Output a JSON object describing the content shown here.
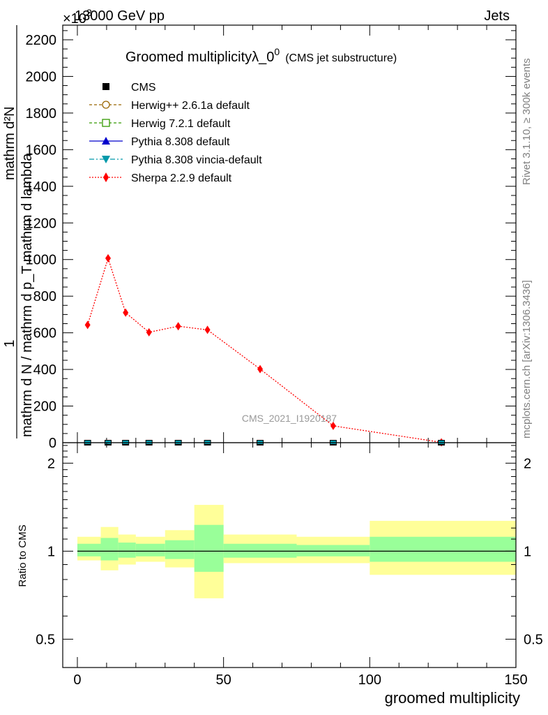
{
  "header": {
    "left": "13000 GeV pp",
    "right": "Jets",
    "multiplier": "×10",
    "multiplier_exp": "3"
  },
  "side_labels": {
    "rivet": "Rivet 3.1.10, ≥ 300k events",
    "mcplots": "mcplots.cern.ch [arXiv:1306.3436]"
  },
  "watermark": "CMS_2021_I1920187",
  "colors": {
    "sherpa": "#ff0000",
    "herwig_pp": "#996600",
    "herwig7": "#339900",
    "pythia": "#0000cc",
    "vincia": "#0099aa",
    "band_inner": "#99ff99",
    "band_outer": "#ffff99"
  },
  "chart_data": [
    {
      "type": "line",
      "title": "Groomed multiplicityλ_0",
      "title_sup": "0",
      "subtitle": "(CMS jet substructure)",
      "ylabel_num": "1",
      "ylabel_den": "mathrm d N / mathrm d p_T mathrm d lambda",
      "ylabel_top": "mathrm d²N",
      "xlim": [
        -5,
        150
      ],
      "ylim": [
        0,
        2280
      ],
      "y_scale_note": "values ×10^3",
      "yticks": [
        0,
        200,
        400,
        600,
        800,
        1000,
        1200,
        1400,
        1600,
        1800,
        2000,
        2200
      ],
      "ytick_labels": [
        "0",
        "200",
        "400",
        "600",
        "800",
        "1000",
        "1200",
        "1400",
        "1600",
        "1800",
        "2000",
        "2200"
      ],
      "legend": [
        {
          "name": "CMS",
          "marker": "square-filled",
          "color": "#000000"
        },
        {
          "name": "Herwig++ 2.6.1a default",
          "marker": "circle-open",
          "color": "#996600"
        },
        {
          "name": "Herwig 7.2.1 default",
          "marker": "square-open",
          "color": "#339900"
        },
        {
          "name": "Pythia 8.308 default",
          "marker": "triangle-up",
          "color": "#0000cc"
        },
        {
          "name": "Pythia 8.308 vincia-default",
          "marker": "triangle-down",
          "color": "#0099aa"
        },
        {
          "name": "Sherpa 2.2.9 default",
          "marker": "diamond",
          "color": "#ff0000"
        }
      ],
      "series": [
        {
          "name": "Sherpa 2.2.9 default",
          "x": [
            3.5,
            10.5,
            16.5,
            24.5,
            34.5,
            44.5,
            62.5,
            87.5,
            124.5
          ],
          "values": [
            643,
            1007,
            710,
            603,
            636,
            616,
            402,
            92,
            2
          ]
        },
        {
          "name": "CMS",
          "x": [
            3.5,
            10.5,
            16.5,
            24.5,
            34.5,
            44.5,
            62.5,
            87.5,
            124.5
          ],
          "values": [
            0,
            0,
            0,
            0,
            0,
            0,
            0,
            0,
            0
          ]
        }
      ]
    },
    {
      "type": "area",
      "ylabel": "Ratio to CMS",
      "xlabel": "groomed multiplicity",
      "xlim": [
        -5,
        150
      ],
      "ylim": [
        0.4,
        2.35
      ],
      "y_scale": "log",
      "xticks": [
        0,
        50,
        100,
        150
      ],
      "xtick_labels": [
        "0",
        "50",
        "100",
        "150"
      ],
      "yticks": [
        0.5,
        1,
        2
      ],
      "ytick_labels": [
        "0.5",
        "1",
        "2"
      ],
      "bins": [
        {
          "lo": 0,
          "hi": 8,
          "inner": [
            0.96,
            1.06
          ],
          "outer": [
            0.93,
            1.12
          ]
        },
        {
          "lo": 8,
          "hi": 14,
          "inner": [
            0.93,
            1.11
          ],
          "outer": [
            0.86,
            1.21
          ]
        },
        {
          "lo": 14,
          "hi": 20,
          "inner": [
            0.95,
            1.07
          ],
          "outer": [
            0.9,
            1.14
          ]
        },
        {
          "lo": 20,
          "hi": 30,
          "inner": [
            0.96,
            1.06
          ],
          "outer": [
            0.92,
            1.12
          ]
        },
        {
          "lo": 30,
          "hi": 40,
          "inner": [
            0.94,
            1.09
          ],
          "outer": [
            0.88,
            1.18
          ]
        },
        {
          "lo": 40,
          "hi": 50,
          "inner": [
            0.85,
            1.23
          ],
          "outer": [
            0.69,
            1.44
          ]
        },
        {
          "lo": 50,
          "hi": 75,
          "inner": [
            0.95,
            1.06
          ],
          "outer": [
            0.91,
            1.14
          ]
        },
        {
          "lo": 75,
          "hi": 100,
          "inner": [
            0.96,
            1.05
          ],
          "outer": [
            0.91,
            1.12
          ]
        },
        {
          "lo": 100,
          "hi": 150,
          "inner": [
            0.92,
            1.12
          ],
          "outer": [
            0.83,
            1.27
          ]
        }
      ]
    }
  ]
}
